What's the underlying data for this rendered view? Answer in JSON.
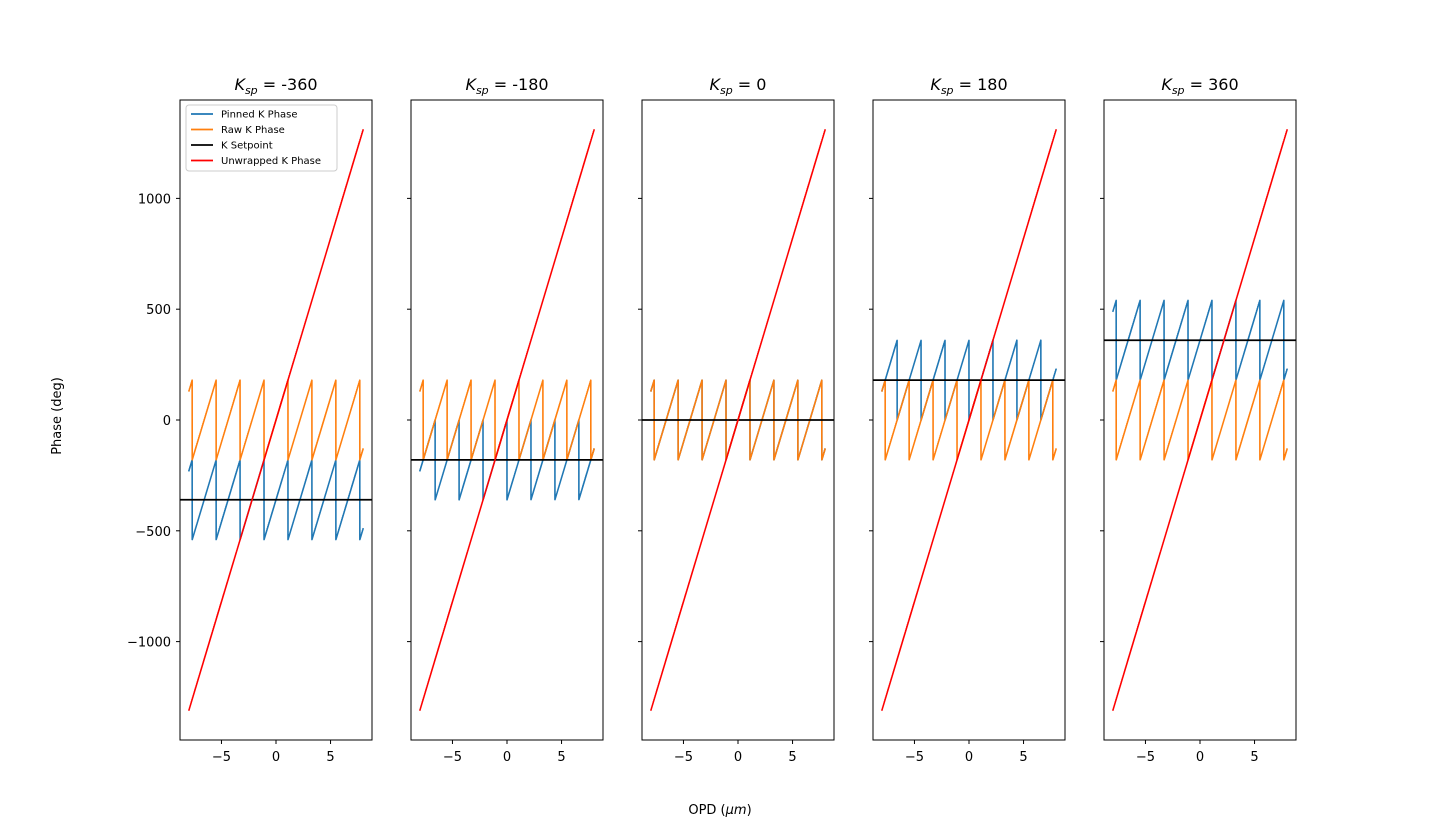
{
  "figure": {
    "xlabel": "OPD (",
    "xlabel_unit": "μm",
    "xlabel_close": ")",
    "ylabel": "Phase (deg)"
  },
  "colors": {
    "pinned": "#1f77b4",
    "raw": "#ff7f0e",
    "setpoint": "#000000",
    "unwrapped": "#ff0000"
  },
  "legend": {
    "items": [
      {
        "key": "pinned",
        "label": "Pinned K Phase"
      },
      {
        "key": "raw",
        "label": "Raw K Phase"
      },
      {
        "key": "setpoint",
        "label": "K Setpoint"
      },
      {
        "key": "unwrapped",
        "label": "Unwrapped K Phase"
      }
    ]
  },
  "chart_data": {
    "type": "line",
    "shared_y": true,
    "xlim": [
      -8.8,
      8.8
    ],
    "ylim": [
      -1444,
      1444
    ],
    "xticks": [
      -5,
      0,
      5
    ],
    "xtick_labels": [
      "−5",
      "0",
      "5"
    ],
    "yticks": [
      -1000,
      -500,
      0,
      500,
      1000
    ],
    "ytick_labels": [
      "−1000",
      "−500",
      "0",
      "500",
      "1000"
    ],
    "x_range": [
      -8,
      8
    ],
    "phase_slope_deg_per_um": 164,
    "wrap_period_deg": 360,
    "raw_phase_range": [
      -180,
      180
    ],
    "panels": [
      {
        "title_main": "K",
        "title_sub": "sp",
        "title_value": " = -360",
        "setpoint": -360
      },
      {
        "title_main": "K",
        "title_sub": "sp",
        "title_value": " = -180",
        "setpoint": -180
      },
      {
        "title_main": "K",
        "title_sub": "sp",
        "title_value": " = 0",
        "setpoint": 0
      },
      {
        "title_main": "K",
        "title_sub": "sp",
        "title_value": " = 180",
        "setpoint": 180
      },
      {
        "title_main": "K",
        "title_sub": "sp",
        "title_value": " = 360",
        "setpoint": 360
      }
    ],
    "series": [
      {
        "name": "Pinned K Phase",
        "description": "raw phase wrapped into setpoint ± 180"
      },
      {
        "name": "Raw K Phase",
        "description": "unwrapped phase wrapped into [-180, 180)"
      },
      {
        "name": "K Setpoint",
        "description": "constant at setpoint"
      },
      {
        "name": "Unwrapped K Phase",
        "description": "phase = 164 × OPD"
      }
    ]
  }
}
